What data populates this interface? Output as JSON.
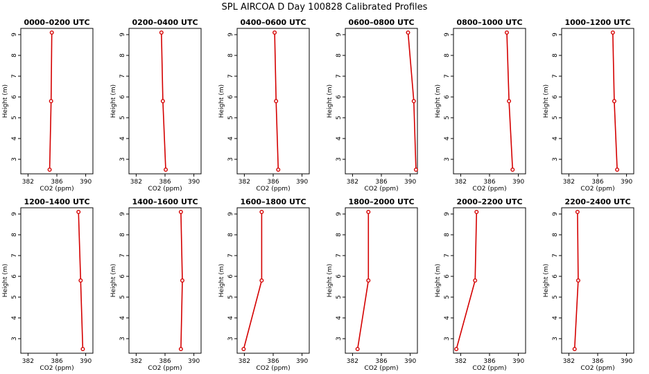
{
  "figure": {
    "title": "SPL AIRCOA D  Day 100828  Calibrated Profiles"
  },
  "colors": {
    "series": "#d40000",
    "axis": "#000000",
    "background": "#ffffff"
  },
  "chart_data": [
    {
      "type": "line",
      "title": "0000–0200 UTC",
      "xlabel": "CO2 (ppm)",
      "ylabel": "Height (m)",
      "xlim": [
        381,
        391
      ],
      "ylim": [
        2.3,
        9.3
      ],
      "xticks": [
        "382",
        "386",
        "390"
      ],
      "yticks": [
        "3",
        "4",
        "5",
        "6",
        "7",
        "8",
        "9"
      ],
      "series": [
        {
          "x": [
            385.0,
            385.2,
            385.3
          ],
          "y": [
            2.5,
            5.8,
            9.1
          ]
        }
      ]
    },
    {
      "type": "line",
      "title": "0200–0400 UTC",
      "xlabel": "CO2 (ppm)",
      "ylabel": "Height (m)",
      "xlim": [
        381,
        391
      ],
      "ylim": [
        2.3,
        9.3
      ],
      "xticks": [
        "382",
        "386",
        "390"
      ],
      "yticks": [
        "3",
        "4",
        "5",
        "6",
        "7",
        "8",
        "9"
      ],
      "series": [
        {
          "x": [
            386.1,
            385.7,
            385.5
          ],
          "y": [
            2.5,
            5.8,
            9.1
          ]
        }
      ]
    },
    {
      "type": "line",
      "title": "0400–0600 UTC",
      "xlabel": "CO2 (ppm)",
      "ylabel": "Height (m)",
      "xlim": [
        381,
        391
      ],
      "ylim": [
        2.3,
        9.3
      ],
      "xticks": [
        "382",
        "386",
        "390"
      ],
      "yticks": [
        "3",
        "4",
        "5",
        "6",
        "7",
        "8",
        "9"
      ],
      "series": [
        {
          "x": [
            386.7,
            386.4,
            386.2
          ],
          "y": [
            2.5,
            5.8,
            9.1
          ]
        }
      ]
    },
    {
      "type": "line",
      "title": "0600–0800 UTC",
      "xlabel": "CO2 (ppm)",
      "ylabel": "Height (m)",
      "xlim": [
        381,
        391
      ],
      "ylim": [
        2.3,
        9.3
      ],
      "xticks": [
        "382",
        "386",
        "390"
      ],
      "yticks": [
        "3",
        "4",
        "5",
        "6",
        "7",
        "8",
        "9"
      ],
      "series": [
        {
          "x": [
            390.8,
            390.5,
            389.7
          ],
          "y": [
            2.5,
            5.8,
            9.1
          ]
        }
      ]
    },
    {
      "type": "line",
      "title": "0800–1000 UTC",
      "xlabel": "CO2 (ppm)",
      "ylabel": "Height (m)",
      "xlim": [
        381,
        391
      ],
      "ylim": [
        2.3,
        9.3
      ],
      "xticks": [
        "382",
        "386",
        "390"
      ],
      "yticks": [
        "3",
        "4",
        "5",
        "6",
        "7",
        "8",
        "9"
      ],
      "series": [
        {
          "x": [
            389.2,
            388.7,
            388.4
          ],
          "y": [
            2.5,
            5.8,
            9.1
          ]
        }
      ]
    },
    {
      "type": "line",
      "title": "1000–1200 UTC",
      "xlabel": "CO2 (ppm)",
      "ylabel": "Height (m)",
      "xlim": [
        381,
        391
      ],
      "ylim": [
        2.3,
        9.3
      ],
      "xticks": [
        "382",
        "386",
        "390"
      ],
      "yticks": [
        "3",
        "4",
        "5",
        "6",
        "7",
        "8",
        "9"
      ],
      "series": [
        {
          "x": [
            388.7,
            388.3,
            388.1
          ],
          "y": [
            2.5,
            5.8,
            9.1
          ]
        }
      ]
    },
    {
      "type": "line",
      "title": "1200–1400 UTC",
      "xlabel": "CO2 (ppm)",
      "ylabel": "Height (m)",
      "xlim": [
        381,
        391
      ],
      "ylim": [
        2.3,
        9.3
      ],
      "xticks": [
        "382",
        "386",
        "390"
      ],
      "yticks": [
        "3",
        "4",
        "5",
        "6",
        "7",
        "8",
        "9"
      ],
      "series": [
        {
          "x": [
            389.6,
            389.3,
            389.0
          ],
          "y": [
            2.5,
            5.8,
            9.1
          ]
        }
      ]
    },
    {
      "type": "line",
      "title": "1400–1600 UTC",
      "xlabel": "CO2 (ppm)",
      "ylabel": "Height (m)",
      "xlim": [
        381,
        391
      ],
      "ylim": [
        2.3,
        9.3
      ],
      "xticks": [
        "382",
        "386",
        "390"
      ],
      "yticks": [
        "3",
        "4",
        "5",
        "6",
        "7",
        "8",
        "9"
      ],
      "series": [
        {
          "x": [
            388.2,
            388.4,
            388.2
          ],
          "y": [
            2.5,
            5.8,
            9.1
          ]
        }
      ]
    },
    {
      "type": "line",
      "title": "1600–1800 UTC",
      "xlabel": "CO2 (ppm)",
      "ylabel": "Height (m)",
      "xlim": [
        381,
        391
      ],
      "ylim": [
        2.3,
        9.3
      ],
      "xticks": [
        "382",
        "386",
        "390"
      ],
      "yticks": [
        "3",
        "4",
        "5",
        "6",
        "7",
        "8",
        "9"
      ],
      "series": [
        {
          "x": [
            381.9,
            384.4,
            384.4
          ],
          "y": [
            2.5,
            5.8,
            9.1
          ]
        }
      ]
    },
    {
      "type": "line",
      "title": "1800–2000 UTC",
      "xlabel": "CO2 (ppm)",
      "ylabel": "Height (m)",
      "xlim": [
        381,
        391
      ],
      "ylim": [
        2.3,
        9.3
      ],
      "xticks": [
        "382",
        "386",
        "390"
      ],
      "yticks": [
        "3",
        "4",
        "5",
        "6",
        "7",
        "8",
        "9"
      ],
      "series": [
        {
          "x": [
            382.7,
            384.2,
            384.2
          ],
          "y": [
            2.5,
            5.8,
            9.1
          ]
        }
      ]
    },
    {
      "type": "line",
      "title": "2000–2200 UTC",
      "xlabel": "CO2 (ppm)",
      "ylabel": "Height (m)",
      "xlim": [
        381,
        391
      ],
      "ylim": [
        2.3,
        9.3
      ],
      "xticks": [
        "382",
        "386",
        "390"
      ],
      "yticks": [
        "3",
        "4",
        "5",
        "6",
        "7",
        "8",
        "9"
      ],
      "series": [
        {
          "x": [
            381.4,
            384.0,
            384.2
          ],
          "y": [
            2.5,
            5.8,
            9.1
          ]
        }
      ]
    },
    {
      "type": "line",
      "title": "2200–2400 UTC",
      "xlabel": "CO2 (ppm)",
      "ylabel": "Height (m)",
      "xlim": [
        381,
        391
      ],
      "ylim": [
        2.3,
        9.3
      ],
      "xticks": [
        "382",
        "386",
        "390"
      ],
      "yticks": [
        "3",
        "4",
        "5",
        "6",
        "7",
        "8",
        "9"
      ],
      "series": [
        {
          "x": [
            382.8,
            383.3,
            383.2
          ],
          "y": [
            2.5,
            5.8,
            9.1
          ]
        }
      ]
    }
  ]
}
